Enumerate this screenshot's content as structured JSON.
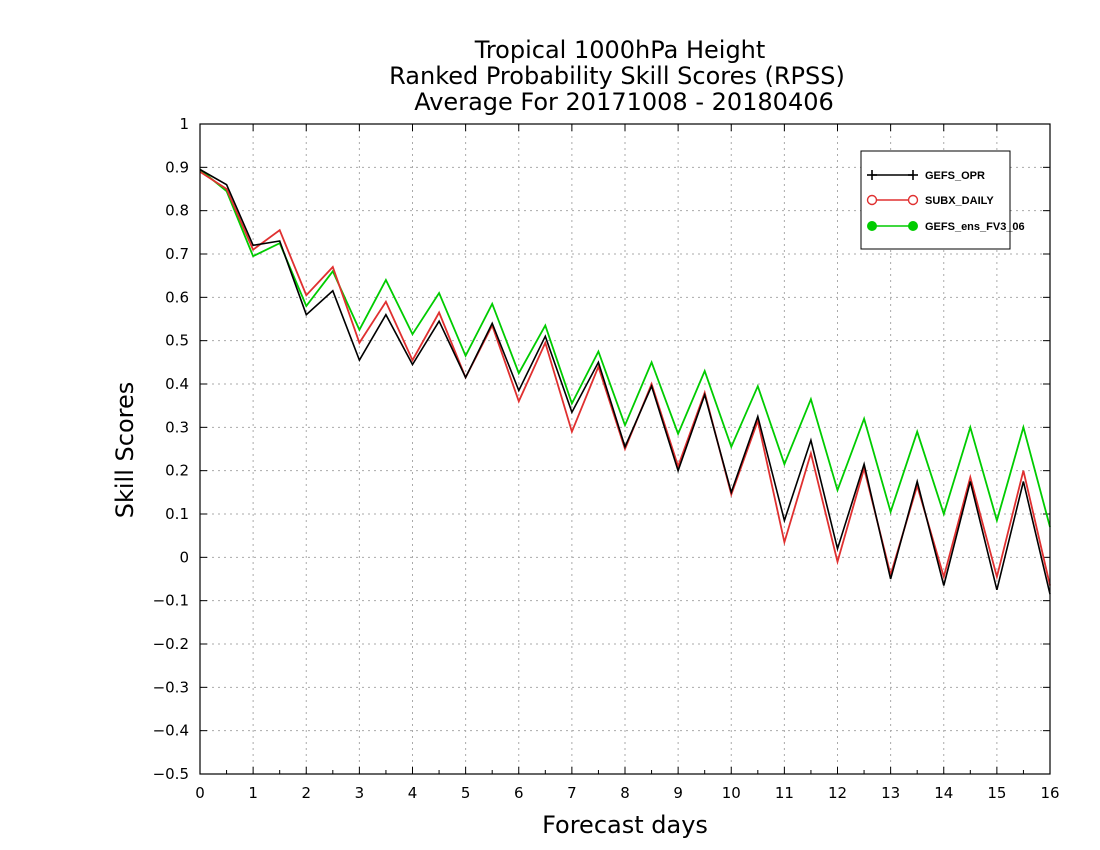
{
  "chart_data": {
    "type": "line",
    "title": [
      "Tropical 1000hPa Height",
      "Ranked Probability Skill Scores (RPSS)",
      "Average For 20171008 - 20180406"
    ],
    "xlabel": "Forecast days",
    "ylabel": "Skill Scores",
    "xlim": [
      0,
      16
    ],
    "ylim": [
      -0.5,
      1
    ],
    "xticks": [
      "0",
      "1",
      "2",
      "3",
      "4",
      "5",
      "6",
      "7",
      "8",
      "9",
      "10",
      "11",
      "12",
      "13",
      "14",
      "15",
      "16"
    ],
    "yticks": [
      "−0.5",
      "−0.4",
      "−0.3",
      "−0.2",
      "−0.1",
      "0",
      "0.1",
      "0.2",
      "0.3",
      "0.4",
      "0.5",
      "0.6",
      "0.7",
      "0.8",
      "0.9",
      "1"
    ],
    "grid": true,
    "legend_position": "top-right",
    "x": [
      0,
      0.5,
      1,
      1.5,
      2,
      2.5,
      3,
      3.5,
      4,
      4.5,
      5,
      5.5,
      6,
      6.5,
      7,
      7.5,
      8,
      8.5,
      9,
      9.5,
      10,
      10.5,
      11,
      11.5,
      12,
      12.5,
      13,
      13.5,
      14,
      14.5,
      15,
      15.5,
      16
    ],
    "series": [
      {
        "name": "GEFS_OPR",
        "color": "#000000",
        "marker": "plus",
        "values": [
          0.895,
          0.86,
          0.72,
          0.73,
          0.56,
          0.615,
          0.455,
          0.56,
          0.445,
          0.545,
          0.415,
          0.54,
          0.385,
          0.51,
          0.335,
          0.45,
          0.255,
          0.395,
          0.2,
          0.375,
          0.15,
          0.325,
          0.085,
          0.27,
          0.02,
          0.215,
          -0.05,
          0.175,
          -0.065,
          0.175,
          -0.075,
          0.175,
          -0.085
        ]
      },
      {
        "name": "SUBX_DAILY",
        "color": "#e03030",
        "marker": "open-circle",
        "values": [
          0.89,
          0.85,
          0.71,
          0.755,
          0.605,
          0.67,
          0.495,
          0.59,
          0.455,
          0.565,
          0.415,
          0.535,
          0.36,
          0.495,
          0.29,
          0.44,
          0.25,
          0.4,
          0.21,
          0.38,
          0.145,
          0.315,
          0.035,
          0.24,
          -0.01,
          0.205,
          -0.04,
          0.165,
          -0.045,
          0.185,
          -0.045,
          0.2,
          -0.065
        ]
      },
      {
        "name": "GEFS_ens_FV3_06",
        "color": "#00cc00",
        "marker": "filled-circle",
        "values": [
          0.895,
          0.845,
          0.695,
          0.725,
          0.58,
          0.66,
          0.525,
          0.64,
          0.515,
          0.61,
          0.465,
          0.585,
          0.425,
          0.535,
          0.355,
          0.475,
          0.305,
          0.45,
          0.285,
          0.43,
          0.255,
          0.395,
          0.215,
          0.365,
          0.155,
          0.32,
          0.105,
          0.29,
          0.1,
          0.3,
          0.085,
          0.3,
          0.07
        ]
      }
    ]
  }
}
